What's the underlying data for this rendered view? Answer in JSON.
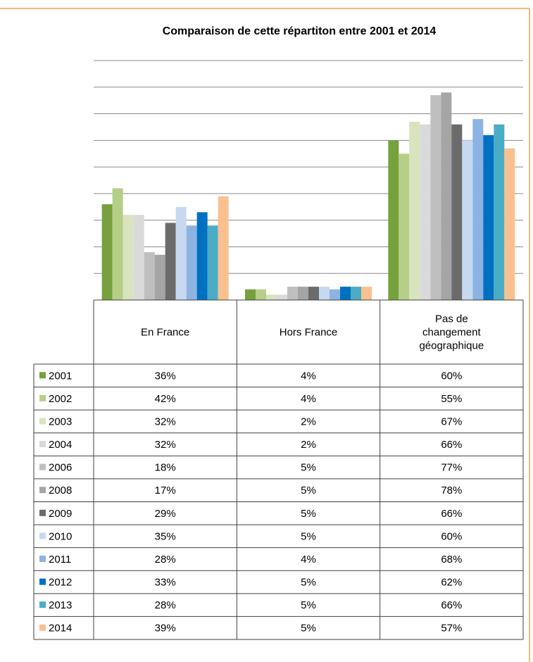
{
  "chart_data": {
    "type": "bar",
    "title": "Comparaison de cette répartiton entre 2001 et 2014",
    "categories": [
      "En France",
      "Hors France",
      "Pas de changement géographique"
    ],
    "ylim": [
      0,
      90
    ],
    "yticks": [
      0,
      10,
      20,
      30,
      40,
      50,
      60,
      70,
      80,
      90
    ],
    "grid": true,
    "series": [
      {
        "name": "2001",
        "color": "#77a13c",
        "values": [
          36,
          4,
          60
        ],
        "value_labels": [
          "36%",
          "4%",
          "60%"
        ]
      },
      {
        "name": "2002",
        "color": "#b6cf88",
        "values": [
          42,
          4,
          55
        ],
        "value_labels": [
          "42%",
          "4%",
          "55%"
        ]
      },
      {
        "name": "2003",
        "color": "#d7e4bd",
        "values": [
          32,
          2,
          67
        ],
        "value_labels": [
          "32%",
          "2%",
          "67%"
        ]
      },
      {
        "name": "2004",
        "color": "#dadada",
        "values": [
          32,
          2,
          66
        ],
        "value_labels": [
          "32%",
          "2%",
          "66%"
        ]
      },
      {
        "name": "2006",
        "color": "#bfbfbf",
        "values": [
          18,
          5,
          77
        ],
        "value_labels": [
          "18%",
          "5%",
          "77%"
        ]
      },
      {
        "name": "2008",
        "color": "#a5a5a5",
        "values": [
          17,
          5,
          78
        ],
        "value_labels": [
          "17%",
          "5%",
          "78%"
        ]
      },
      {
        "name": "2009",
        "color": "#6b6b6b",
        "values": [
          29,
          5,
          66
        ],
        "value_labels": [
          "29%",
          "5%",
          "66%"
        ]
      },
      {
        "name": "2010",
        "color": "#c6d9f1",
        "values": [
          35,
          5,
          60
        ],
        "value_labels": [
          "35%",
          "5%",
          "60%"
        ]
      },
      {
        "name": "2011",
        "color": "#8db3e2",
        "values": [
          28,
          4,
          68
        ],
        "value_labels": [
          "28%",
          "4%",
          "68%"
        ]
      },
      {
        "name": "2012",
        "color": "#0070c0",
        "values": [
          33,
          5,
          62
        ],
        "value_labels": [
          "33%",
          "5%",
          "62%"
        ]
      },
      {
        "name": "2013",
        "color": "#4bacc6",
        "values": [
          28,
          5,
          66
        ],
        "value_labels": [
          "28%",
          "5%",
          "66%"
        ]
      },
      {
        "name": "2014",
        "color": "#fac090",
        "values": [
          39,
          5,
          57
        ],
        "value_labels": [
          "39%",
          "5%",
          "57%"
        ]
      }
    ]
  }
}
